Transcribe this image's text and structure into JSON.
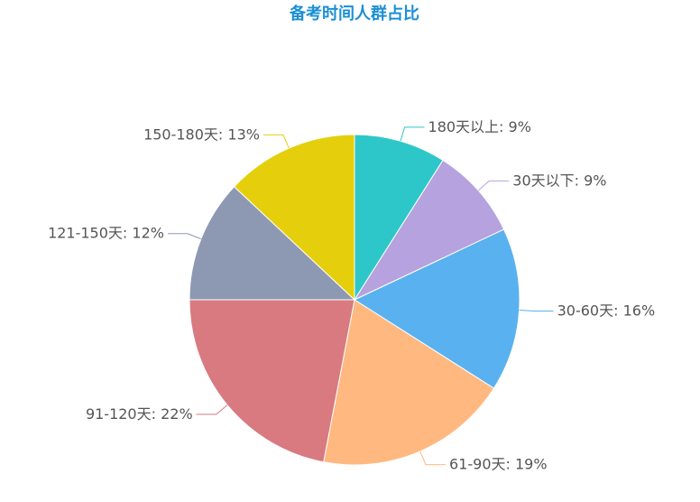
{
  "chart_data": {
    "type": "pie",
    "title": "备考时间人群占比",
    "title_color": "#1a8fd6",
    "label_color": "#555555",
    "slices": [
      {
        "label": "180天以上",
        "value": 9,
        "display": "180天以上: 9%",
        "color": "#2ec7c9"
      },
      {
        "label": "30天以下",
        "value": 9,
        "display": "30天以下: 9%",
        "color": "#b6a2de"
      },
      {
        "label": "30-60天",
        "value": 16,
        "display": "30-60天: 16%",
        "color": "#5ab1ef"
      },
      {
        "label": "61-90天",
        "value": 19,
        "display": "61-90天: 19%",
        "color": "#ffb980"
      },
      {
        "label": "91-120天",
        "value": 22,
        "display": "91-120天: 22%",
        "color": "#d87a80"
      },
      {
        "label": "121-150天",
        "value": 12,
        "display": "121-150天: 12%",
        "color": "#8d98b3"
      },
      {
        "label": "150-180天",
        "value": 13,
        "display": "150-180天: 13%",
        "color": "#e5cf0d"
      }
    ],
    "start_angle": "12-o-clock",
    "direction": "clockwise",
    "legend": "none"
  }
}
